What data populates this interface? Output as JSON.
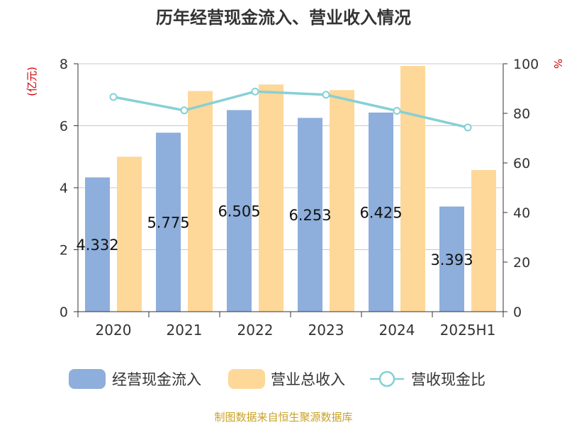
{
  "chart_data": {
    "type": "bar",
    "title": "历年经营现金流入、营业收入情况",
    "left_unit": "(亿元)",
    "right_unit": "%",
    "categories": [
      "2020",
      "2021",
      "2022",
      "2023",
      "2024",
      "2025H1"
    ],
    "left_ylim": [
      0,
      8
    ],
    "left_ticks": [
      "0",
      "2",
      "4",
      "6",
      "8"
    ],
    "right_ylim": [
      0,
      100
    ],
    "right_ticks": [
      "0",
      "20",
      "40",
      "60",
      "80",
      "100"
    ],
    "grid": true,
    "legend_position": "bottom",
    "series": [
      {
        "name": "经营现金流入",
        "kind": "bar",
        "axis": "left",
        "color": "#8eaedb",
        "values": [
          4.332,
          5.775,
          6.505,
          6.253,
          6.425,
          3.393
        ],
        "labels": [
          "4.332",
          "5.775",
          "6.505",
          "6.253",
          "6.425",
          "3.393"
        ]
      },
      {
        "name": "营业总收入",
        "kind": "bar",
        "axis": "left",
        "color": "#fed899",
        "values": [
          5.0,
          7.12,
          7.33,
          7.15,
          7.93,
          4.57
        ]
      },
      {
        "name": "营收现金比",
        "kind": "line",
        "axis": "right",
        "color": "#86d0d6",
        "values": [
          86.6,
          81.2,
          88.8,
          87.5,
          81.0,
          74.3
        ]
      }
    ]
  },
  "source": "制图数据来自恒生聚源数据库"
}
